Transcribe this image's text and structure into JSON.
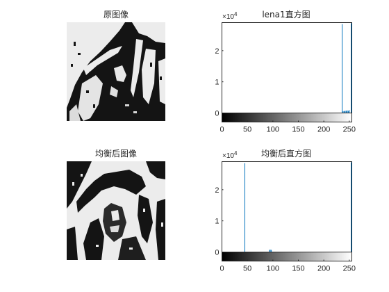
{
  "panels": {
    "orig_image": {
      "title": "原图像"
    },
    "equalized_image": {
      "title": "均衡后图像"
    }
  },
  "colors": {
    "axis": "#262626",
    "bar": "#0072bd",
    "dark": "#141414",
    "light": "#ececec"
  },
  "chart_data": [
    {
      "type": "bar",
      "title": "lena1直方图",
      "xlabel": "",
      "ylabel": "",
      "xlim": [
        0,
        255
      ],
      "ylim": [
        0,
        29000
      ],
      "y_exponent_label": "×10",
      "y_exponent_power": "4",
      "x_ticks": [
        "0",
        "50",
        "100",
        "150",
        "200",
        "250"
      ],
      "y_ticks": [
        "0",
        "1",
        "2"
      ],
      "bins": [
        236,
        238,
        240,
        242,
        244,
        246,
        248,
        250,
        255
      ],
      "counts": [
        28500,
        600,
        600,
        700,
        700,
        800,
        700,
        900,
        28800
      ],
      "colorbar": "grayscale 0-255"
    },
    {
      "type": "bar",
      "title": "均衡后直方图",
      "xlabel": "",
      "ylabel": "",
      "xlim": [
        0,
        255
      ],
      "ylim": [
        0,
        29000
      ],
      "y_exponent_label": "×10",
      "y_exponent_power": "4",
      "x_ticks": [
        "0",
        "50",
        "100",
        "150",
        "200",
        "250"
      ],
      "y_ticks": [
        "0",
        "1",
        "2"
      ],
      "bins": [
        45,
        93,
        95,
        97,
        255
      ],
      "counts": [
        28500,
        700,
        750,
        700,
        28800
      ],
      "colorbar": "grayscale 0-255"
    }
  ]
}
